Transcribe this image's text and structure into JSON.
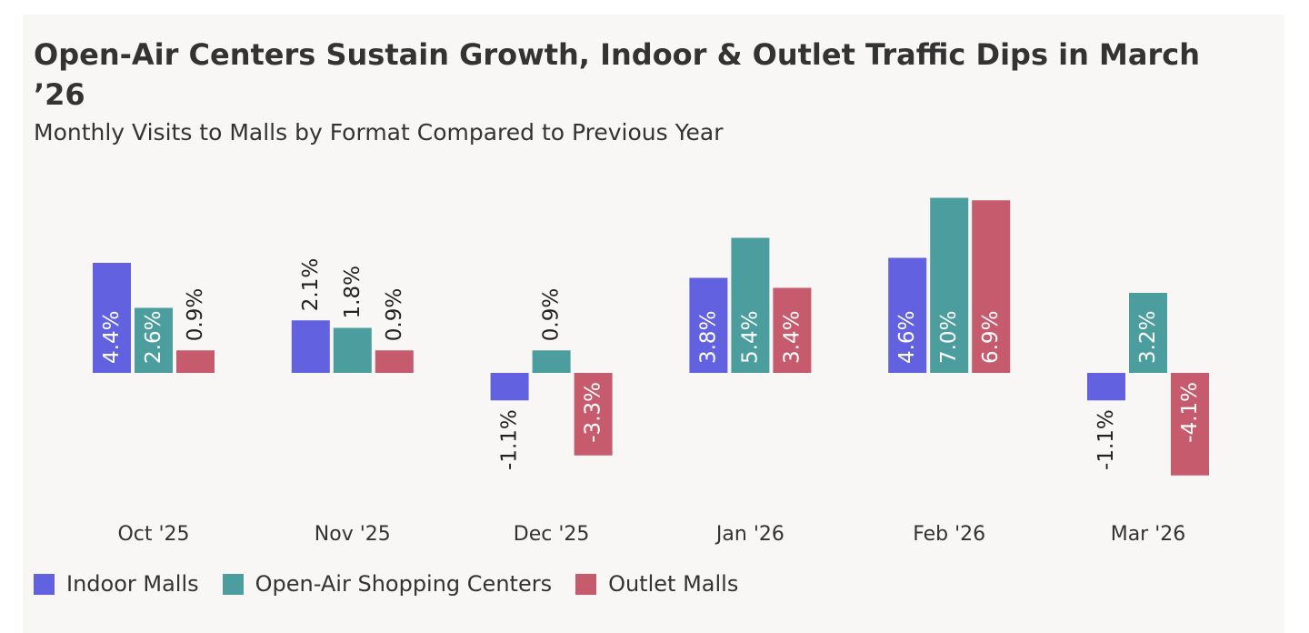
{
  "chart_data": {
    "type": "bar",
    "title": "Open-Air Centers Sustain Growth, Indoor & Outlet Traffic Dips in March ’26",
    "subtitle": "Monthly Visits to Malls by Format Compared to Previous Year",
    "categories": [
      "Oct '25",
      "Nov '25",
      "Dec '25",
      "Jan '26",
      "Feb '26",
      "Mar '26"
    ],
    "series": [
      {
        "name": "Indoor Malls",
        "color": "#6262e0",
        "values": [
          4.4,
          2.1,
          -1.1,
          3.8,
          4.6,
          -1.1
        ],
        "labels": [
          "4.4%",
          "2.1%",
          "-1.1%",
          "3.8%",
          "4.6%",
          "-1.1%"
        ]
      },
      {
        "name": "Open-Air Shopping Centers",
        "color": "#4c9e9e",
        "values": [
          2.6,
          1.8,
          0.9,
          5.4,
          7.0,
          3.2
        ],
        "labels": [
          "2.6%",
          "1.8%",
          "0.9%",
          "5.4%",
          "7.0%",
          "3.2%"
        ]
      },
      {
        "name": "Outlet Malls",
        "color": "#c75b6e",
        "values": [
          0.9,
          0.9,
          -3.3,
          3.4,
          6.9,
          -4.1
        ],
        "labels": [
          "0.9%",
          "0.9%",
          "-3.3%",
          "3.4%",
          "6.9%",
          "-4.1%"
        ]
      }
    ],
    "legend_position": "bottom-left",
    "grid": false,
    "ylim": [
      -4.1,
      7.0
    ]
  }
}
